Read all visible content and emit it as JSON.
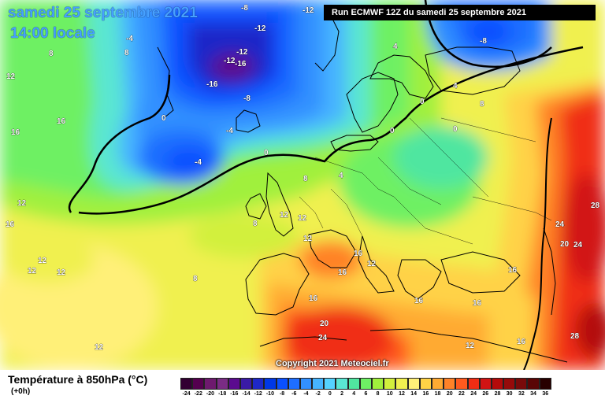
{
  "header": {
    "date": "samedi 25 septembre 2021",
    "time": "14:00 locale",
    "run": "Run ECMWF 12Z du samedi 25 septembre 2021"
  },
  "footer": {
    "variable": "Température à 850hPa (°C)",
    "lead": "(+0h)",
    "copyright": "Copyright 2021 Meteociel.fr"
  },
  "legend": {
    "labels": [
      "-24",
      "-22",
      "-20",
      "-18",
      "-16",
      "-14",
      "-12",
      "-10",
      "-8",
      "-6",
      "-4",
      "-2",
      "0",
      "2",
      "4",
      "6",
      "8",
      "10",
      "12",
      "14",
      "16",
      "18",
      "20",
      "22",
      "24",
      "26",
      "28",
      "30",
      "32",
      "34",
      "36"
    ],
    "colors": [
      "#320032",
      "#55004f",
      "#6e1a6e",
      "#7a2c84",
      "#5b0b8f",
      "#3a1aa6",
      "#1e28c8",
      "#0038e6",
      "#0a50ff",
      "#1e6eff",
      "#3290ff",
      "#46b4ff",
      "#55d2ff",
      "#5ae6d2",
      "#50e6a0",
      "#6ef064",
      "#a0f03c",
      "#d2f03c",
      "#f0f050",
      "#fff078",
      "#ffd246",
      "#ffaa32",
      "#ff8228",
      "#ff5a1e",
      "#f02d14",
      "#d21414",
      "#b40a0a",
      "#960a0a",
      "#780a0a",
      "#5a0505",
      "#280000"
    ]
  },
  "isotherm_labels": [
    {
      "text": "-8"
    },
    {
      "text": "-12"
    },
    {
      "text": "-12"
    },
    {
      "text": "-12"
    },
    {
      "text": "-12"
    },
    {
      "text": "-16"
    },
    {
      "text": "-16"
    },
    {
      "text": "-8"
    },
    {
      "text": "-4"
    },
    {
      "text": "-4"
    },
    {
      "text": "0"
    },
    {
      "text": "0"
    },
    {
      "text": "0"
    },
    {
      "text": "0"
    },
    {
      "text": "0"
    },
    {
      "text": "-4"
    },
    {
      "text": "-8"
    },
    {
      "text": "4"
    },
    {
      "text": "4"
    },
    {
      "text": "4"
    },
    {
      "text": "8"
    },
    {
      "text": "8"
    },
    {
      "text": "8"
    },
    {
      "text": "8"
    },
    {
      "text": "8"
    },
    {
      "text": "16"
    },
    {
      "text": "12"
    },
    {
      "text": "16"
    },
    {
      "text": "12"
    },
    {
      "text": "12"
    },
    {
      "text": "12"
    },
    {
      "text": "12"
    },
    {
      "text": "12"
    },
    {
      "text": "12"
    },
    {
      "text": "16"
    },
    {
      "text": "12"
    },
    {
      "text": "16"
    },
    {
      "text": "16"
    },
    {
      "text": "16"
    },
    {
      "text": "16"
    },
    {
      "text": "16"
    },
    {
      "text": "20"
    },
    {
      "text": "24"
    },
    {
      "text": "12"
    },
    {
      "text": "16"
    },
    {
      "text": "28"
    },
    {
      "text": "24"
    },
    {
      "text": "20"
    },
    {
      "text": "24"
    },
    {
      "text": "28"
    },
    {
      "text": "12"
    },
    {
      "text": "16"
    },
    {
      "text": "8"
    },
    {
      "text": "12"
    }
  ]
}
